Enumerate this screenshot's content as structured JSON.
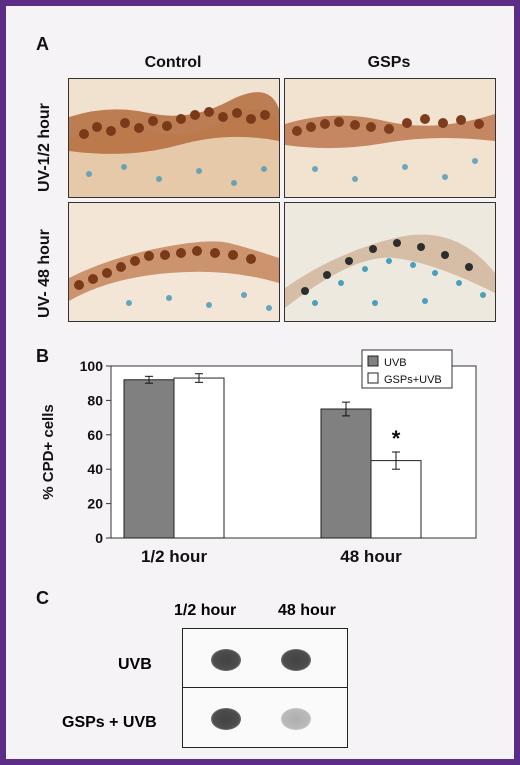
{
  "panel_a": {
    "letter": "A",
    "columns": [
      "Control",
      "GSPs"
    ],
    "rows": [
      "UV-1/2 hour",
      "UV- 48 hour"
    ]
  },
  "panel_b": {
    "letter": "B"
  },
  "panel_c": {
    "letter": "C",
    "columns": [
      "1/2 hour",
      "48 hour"
    ],
    "rows": [
      "UVB",
      "GSPs + UVB"
    ],
    "dot_intensity": [
      [
        0.85,
        0.85
      ],
      [
        0.85,
        0.25
      ]
    ]
  },
  "chart_data": {
    "type": "bar",
    "title": "",
    "ylabel": "% CPD+ cells",
    "xlabel": "",
    "categories": [
      "1/2 hour",
      "48 hour"
    ],
    "ylim": [
      0,
      100
    ],
    "yticks": [
      0,
      20,
      40,
      60,
      80,
      100
    ],
    "series": [
      {
        "name": "UVB",
        "values": [
          92,
          75
        ],
        "errors": [
          2,
          4
        ],
        "color": "#808080"
      },
      {
        "name": "GSPs+UVB",
        "values": [
          93,
          45
        ],
        "errors": [
          2.5,
          5
        ],
        "color": "#ffffff"
      }
    ],
    "annotations": [
      {
        "text": "*",
        "category": "48 hour",
        "series": "GSPs+UVB"
      }
    ],
    "legend": "top-right",
    "grid": false
  }
}
